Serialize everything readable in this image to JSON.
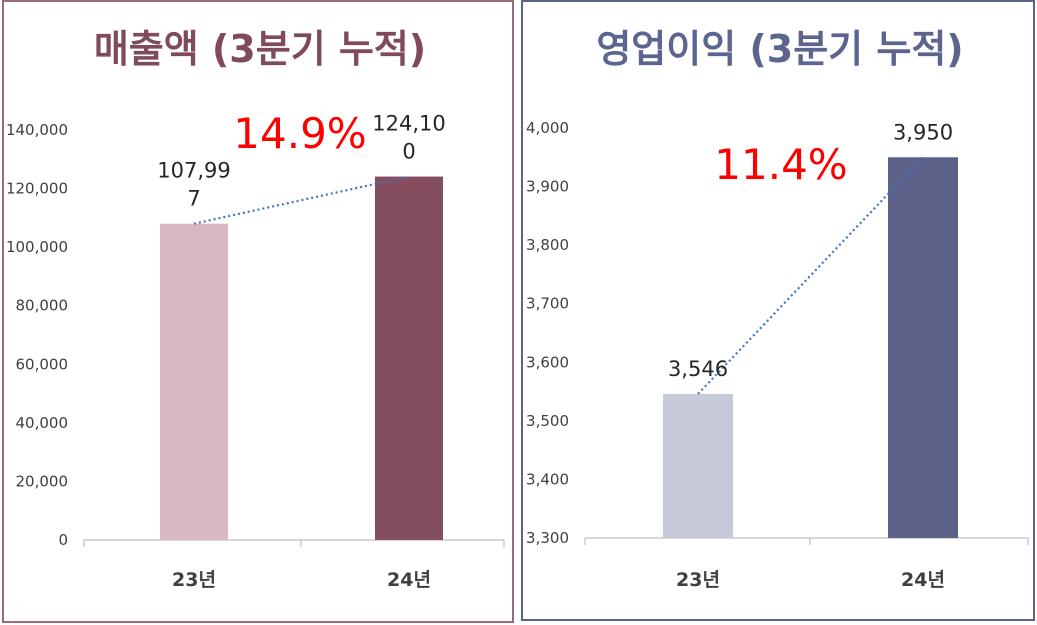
{
  "colors": {
    "left_border": "#9a6b7c",
    "right_border": "#5a6488",
    "left_title": "#7e4a5c",
    "right_title": "#5b6590",
    "growth": "#ff0000",
    "trend_line": "#4472c4"
  },
  "chart_data": [
    {
      "type": "bar",
      "title": "매출액 (3분기 누적)",
      "categories": [
        "23년",
        "24년"
      ],
      "values": [
        107997,
        124100
      ],
      "data_labels": [
        [
          "107,99",
          "7"
        ],
        [
          "124,10",
          "0"
        ]
      ],
      "bar_colors": [
        "#d8b8c1",
        "#854e5e"
      ],
      "ylim": [
        0,
        140000
      ],
      "yticks": [
        "0",
        "20,000",
        "40,000",
        "60,000",
        "80,000",
        "100,000",
        "120,000",
        "140,000"
      ],
      "annotation": "14.9%",
      "trend_line": "dotted",
      "grid": false
    },
    {
      "type": "bar",
      "title": "영업이익 (3분기 누적)",
      "categories": [
        "23년",
        "24년"
      ],
      "values": [
        3546,
        3950
      ],
      "data_labels": [
        [
          "3,546"
        ],
        [
          "3,950"
        ]
      ],
      "bar_colors": [
        "#c6cad8",
        "#5b6188"
      ],
      "ylim": [
        3300,
        4000
      ],
      "yticks": [
        "3,300",
        "3,400",
        "3,500",
        "3,600",
        "3,700",
        "3,800",
        "3,900",
        "4,000"
      ],
      "annotation": "11.4%",
      "trend_line": "dotted",
      "grid": false
    }
  ]
}
